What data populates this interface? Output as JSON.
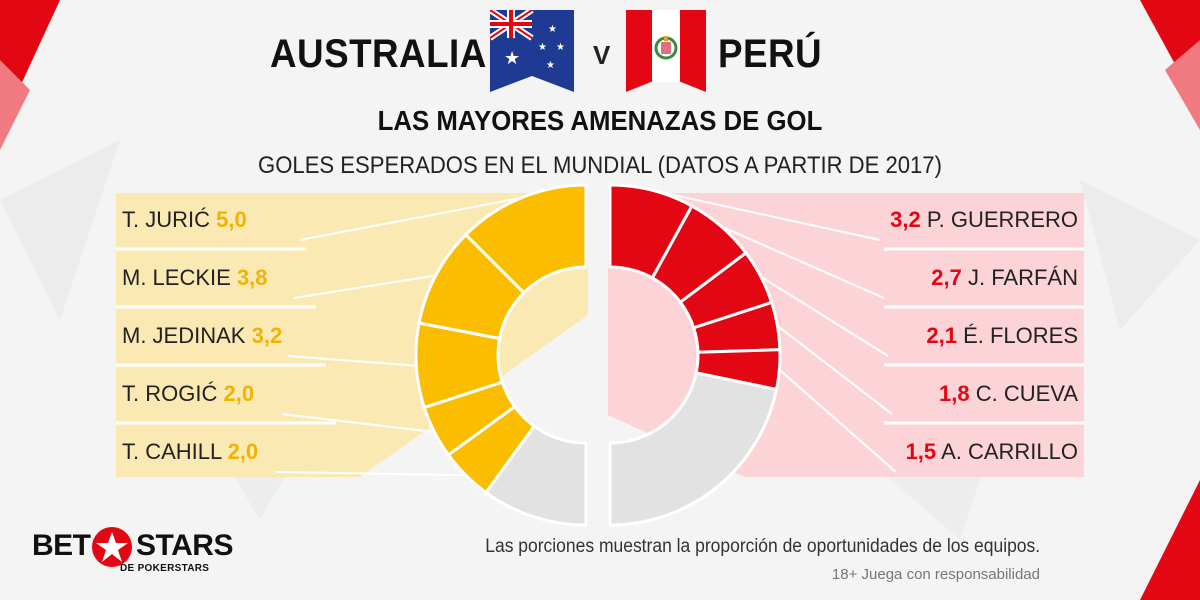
{
  "header": {
    "team_left": "AUSTRALIA",
    "versus": "V",
    "team_right": "PERÚ",
    "subtitle": "LAS MAYORES AMENAZAS DE GOL",
    "subsubtitle": "GOLES ESPERADOS EN EL MUNDIAL (DATOS A PARTIR DE 2017)"
  },
  "colors": {
    "australia": "#fbbd00",
    "australia_panel": "#fbe9b4",
    "peru": "#e30613",
    "peru_panel": "#fcd3d6",
    "rest": "#e2e2e2",
    "accent_red": "#e30613"
  },
  "chart_data": {
    "type": "pie",
    "series": [
      {
        "name": "AUSTRALIA",
        "players": [
          "T. JURIĆ",
          "M. LECKIE",
          "M. JEDINAK",
          "T. ROGIĆ",
          "T. CAHILL"
        ],
        "values": [
          "5,0",
          "3,8",
          "3,2",
          "2,0",
          "2,0"
        ]
      },
      {
        "name": "PERÚ",
        "players": [
          "P. GUERRERO",
          "J. FARFÁN",
          "É. FLORES",
          "C. CUEVA",
          "A. CARRILLO"
        ],
        "values": [
          "3,2",
          "2,7",
          "2,1",
          "1,8",
          "1,5"
        ]
      }
    ],
    "note": "Las porciones muestran la proporción de oportunidades de los equipos."
  },
  "brand": {
    "name_left": "BET",
    "name_right": "STARS",
    "sub": "DE POKERSTARS"
  },
  "disclaimer": "18+ Juega con responsabilidad"
}
